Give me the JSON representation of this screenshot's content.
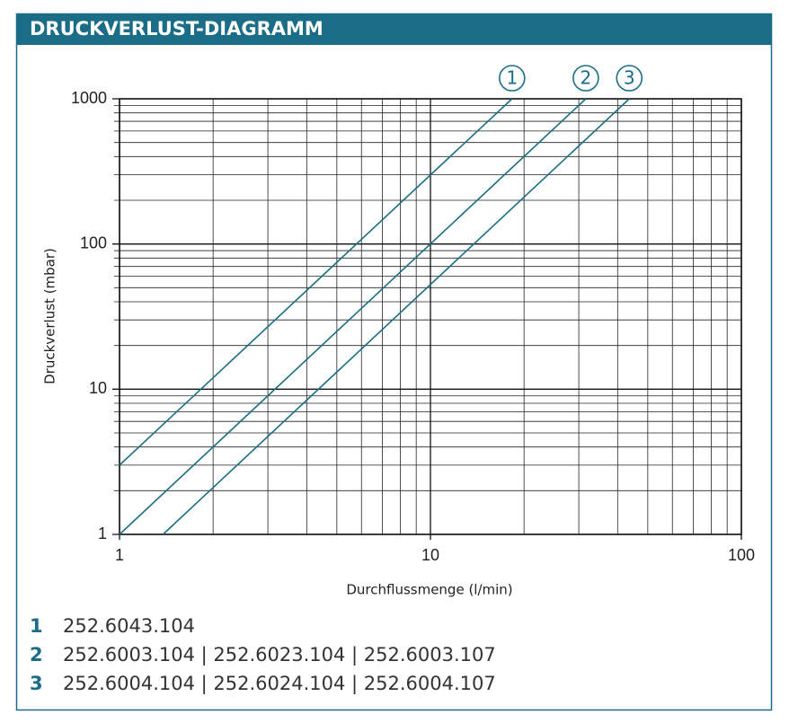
{
  "chart_data": {
    "type": "line",
    "title": "DRUCKVERLUST-DIAGRAMM",
    "x_label": "Durchflussmenge (l/min)",
    "y_label": "Druckverlust (mbar)",
    "log_x": true,
    "log_y": true,
    "grid": true,
    "minor_grid": true,
    "xlim": [
      1,
      100
    ],
    "ylim": [
      1,
      1000
    ],
    "xticks": [
      1,
      10,
      100
    ],
    "yticks": [
      1,
      10,
      100,
      1000
    ],
    "series": [
      {
        "name": "1",
        "description": "252.6043.104",
        "color": "#1b6d87",
        "x": [
          1,
          18.3
        ],
        "values": [
          3,
          1000
        ]
      },
      {
        "name": "2",
        "description": "252.6003.104 | 252.6023.104 | 252.6003.107",
        "color": "#1b6d87",
        "x": [
          1,
          31.6
        ],
        "values": [
          1,
          1000
        ]
      },
      {
        "name": "3",
        "description": "252.6004.104 | 252.6024.104 | 252.6004.107",
        "color": "#1b6d87",
        "x": [
          1.38,
          43.6
        ],
        "values": [
          1,
          1000
        ]
      }
    ]
  }
}
